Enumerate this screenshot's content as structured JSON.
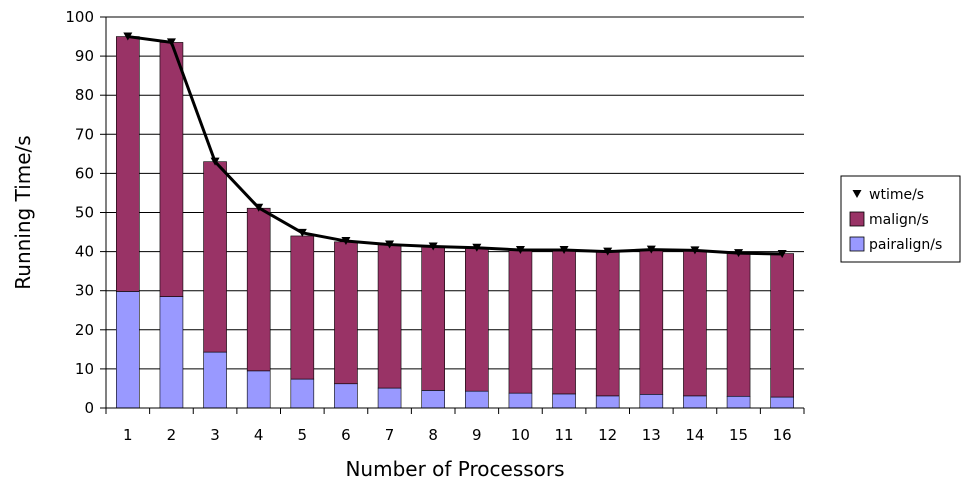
{
  "chart_data": {
    "type": "bar",
    "stacked": true,
    "categories": [
      "1",
      "2",
      "3",
      "4",
      "5",
      "6",
      "7",
      "8",
      "9",
      "10",
      "11",
      "12",
      "13",
      "14",
      "15",
      "16"
    ],
    "xlabel": "Number of Processors",
    "ylabel": "Running Time/s",
    "ylim": [
      0,
      100
    ],
    "yticks": [
      0,
      10,
      20,
      30,
      40,
      50,
      60,
      70,
      80,
      90,
      100
    ],
    "grid": true,
    "legend_position": "right",
    "series": [
      {
        "name": "pairalign/s",
        "type": "bar",
        "color": "#9999ff",
        "values": [
          29.8,
          28.5,
          14.3,
          9.5,
          7.4,
          6.2,
          5.1,
          4.5,
          4.3,
          3.8,
          3.6,
          3.1,
          3.5,
          3.1,
          3.0,
          2.8
        ]
      },
      {
        "name": "malign/s",
        "type": "bar",
        "color": "#993366",
        "values": [
          65.2,
          65.0,
          48.7,
          41.6,
          36.6,
          36.3,
          36.7,
          36.8,
          36.7,
          36.6,
          36.8,
          36.9,
          37.0,
          37.2,
          36.6,
          36.7
        ]
      },
      {
        "name": "wtime/s",
        "type": "line",
        "color": "#000000",
        "marker": "triangle-down",
        "values": [
          95.0,
          93.5,
          63.0,
          51.2,
          44.8,
          42.7,
          41.8,
          41.3,
          41.0,
          40.4,
          40.4,
          40.0,
          40.5,
          40.3,
          39.6,
          39.4
        ]
      }
    ]
  }
}
